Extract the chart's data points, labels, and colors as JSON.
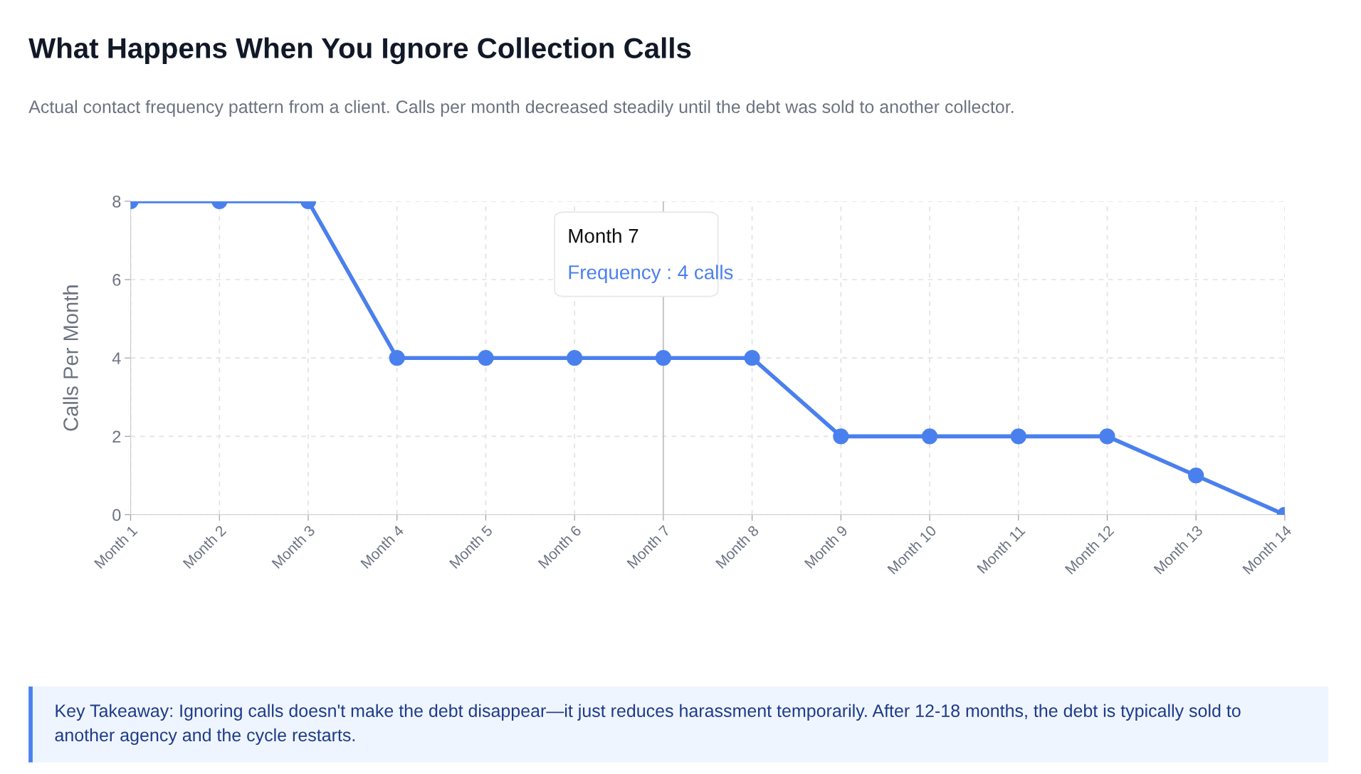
{
  "chart_data": {
    "type": "line",
    "title": "What Happens When You Ignore Collection Calls",
    "subtitle": "Actual contact frequency pattern from a client. Calls per month decreased steadily until the debt was sold to another collector.",
    "ylabel": "Calls Per Month",
    "categories": [
      "Month 1",
      "Month 2",
      "Month 3",
      "Month 4",
      "Month 5",
      "Month 6",
      "Month 7",
      "Month 8",
      "Month 9",
      "Month 10",
      "Month 11",
      "Month 12",
      "Month 13",
      "Month 14"
    ],
    "series": [
      {
        "color": "#4a80ee",
        "values": [
          8,
          8,
          8,
          4,
          4,
          4,
          4,
          4,
          2,
          2,
          2,
          2,
          1,
          0
        ]
      }
    ],
    "ylim": [
      0,
      8
    ],
    "yticks": [
      0,
      2,
      4,
      6,
      8
    ],
    "grid": true,
    "marker": "circle",
    "line_style": "solid",
    "ref_lines": [
      {
        "axis": "x",
        "value": "Month 7",
        "color": "#c8c8c8"
      }
    ],
    "annotations": [
      "Month 7",
      "Frequency : 4 calls",
      "Key Takeaway: Ignoring calls doesn't make the debt disappear—it just reduces harassment temporarily. After 12-18 months, the debt is typically sold to another agency and the cycle restarts."
    ]
  }
}
